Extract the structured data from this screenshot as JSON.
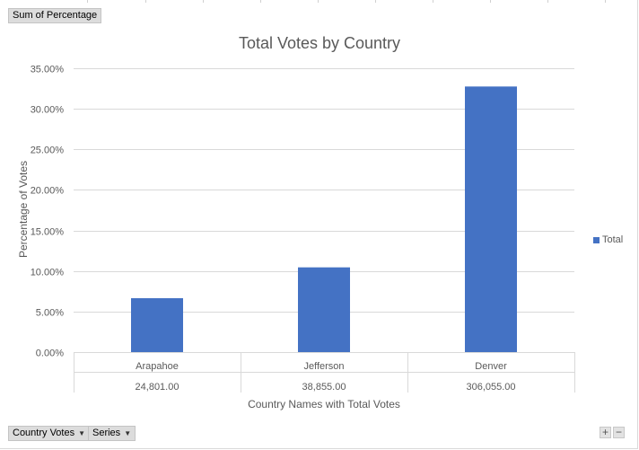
{
  "pivot": {
    "value_field": "Sum of Percentage",
    "axis_field": "Country Votes",
    "legend_field": "Series",
    "zoom_in": "+",
    "zoom_out": "−"
  },
  "chart_data": {
    "type": "bar",
    "title": "Total Votes by Country",
    "xlabel": "Country Names with Total Votes",
    "ylabel": "Percentage of Votes",
    "categories": [
      [
        "Arapahoe",
        "24,801.00"
      ],
      [
        "Jefferson",
        "38,855.00"
      ],
      [
        "Denver",
        "306,055.00"
      ]
    ],
    "series": [
      {
        "name": "Total",
        "values": [
          0.0665,
          0.1045,
          0.3275
        ],
        "color": "#4472c4"
      }
    ],
    "ylim": [
      0,
      0.35
    ],
    "yticks": [
      0,
      0.05,
      0.1,
      0.15,
      0.2,
      0.25,
      0.3,
      0.35
    ],
    "ytick_labels": [
      "0.00%",
      "5.00%",
      "10.00%",
      "15.00%",
      "20.00%",
      "25.00%",
      "30.00%",
      "35.00%"
    ],
    "grid": true,
    "legend_position": "right"
  }
}
